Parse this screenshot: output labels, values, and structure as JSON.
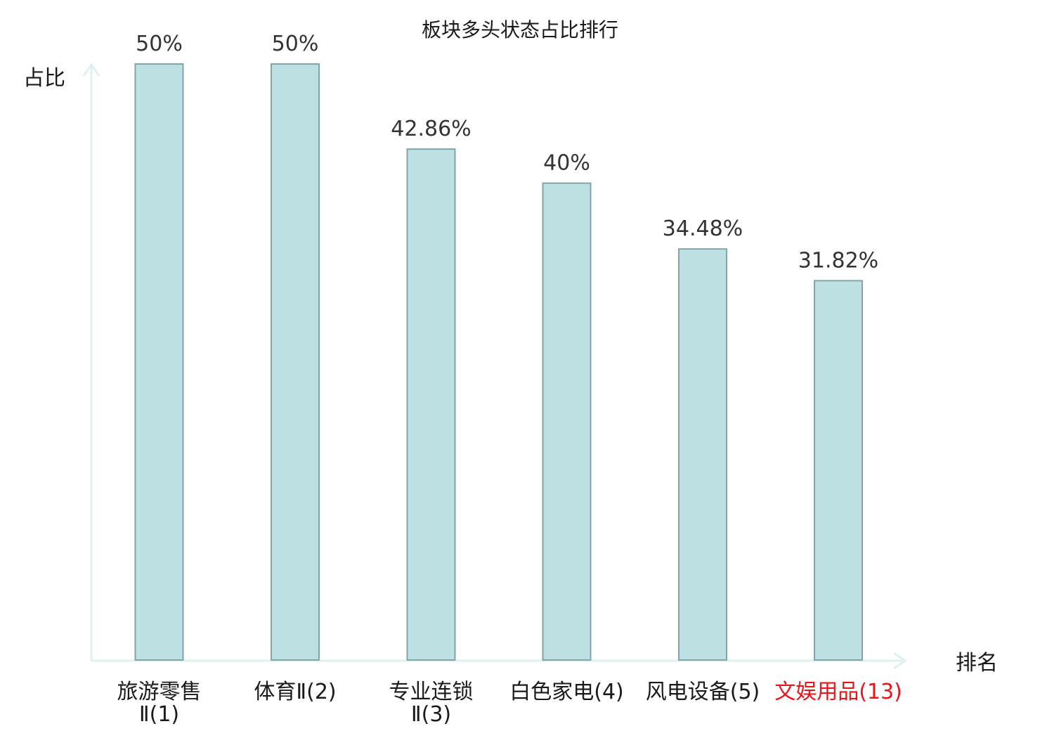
{
  "chart_data": {
    "type": "bar",
    "title": "板块多头状态占比排行",
    "ylabel": "占比",
    "xlabel": "排名",
    "categories": [
      {
        "lines": [
          "旅游零售",
          "Ⅱ(1)"
        ],
        "highlight": false
      },
      {
        "lines": [
          "体育Ⅱ(2)"
        ],
        "highlight": false
      },
      {
        "lines": [
          "专业连锁",
          "Ⅱ(3)"
        ],
        "highlight": false
      },
      {
        "lines": [
          "白色家电(4)"
        ],
        "highlight": false
      },
      {
        "lines": [
          "风电设备(5)"
        ],
        "highlight": false
      },
      {
        "lines": [
          "文娱用品(13)"
        ],
        "highlight": true
      }
    ],
    "values": [
      50,
      50,
      42.86,
      40,
      34.48,
      31.82
    ],
    "value_labels": [
      "50%",
      "50%",
      "42.86%",
      "40%",
      "34.48%",
      "31.82%"
    ],
    "ylim": [
      0,
      50
    ],
    "grid": false,
    "colors": {
      "bar_fill": "#bde0e2",
      "bar_stroke": "#82a5a8",
      "axis": "#dff0ee",
      "label": "#1a1a1a",
      "highlight": "#e3181c"
    }
  }
}
